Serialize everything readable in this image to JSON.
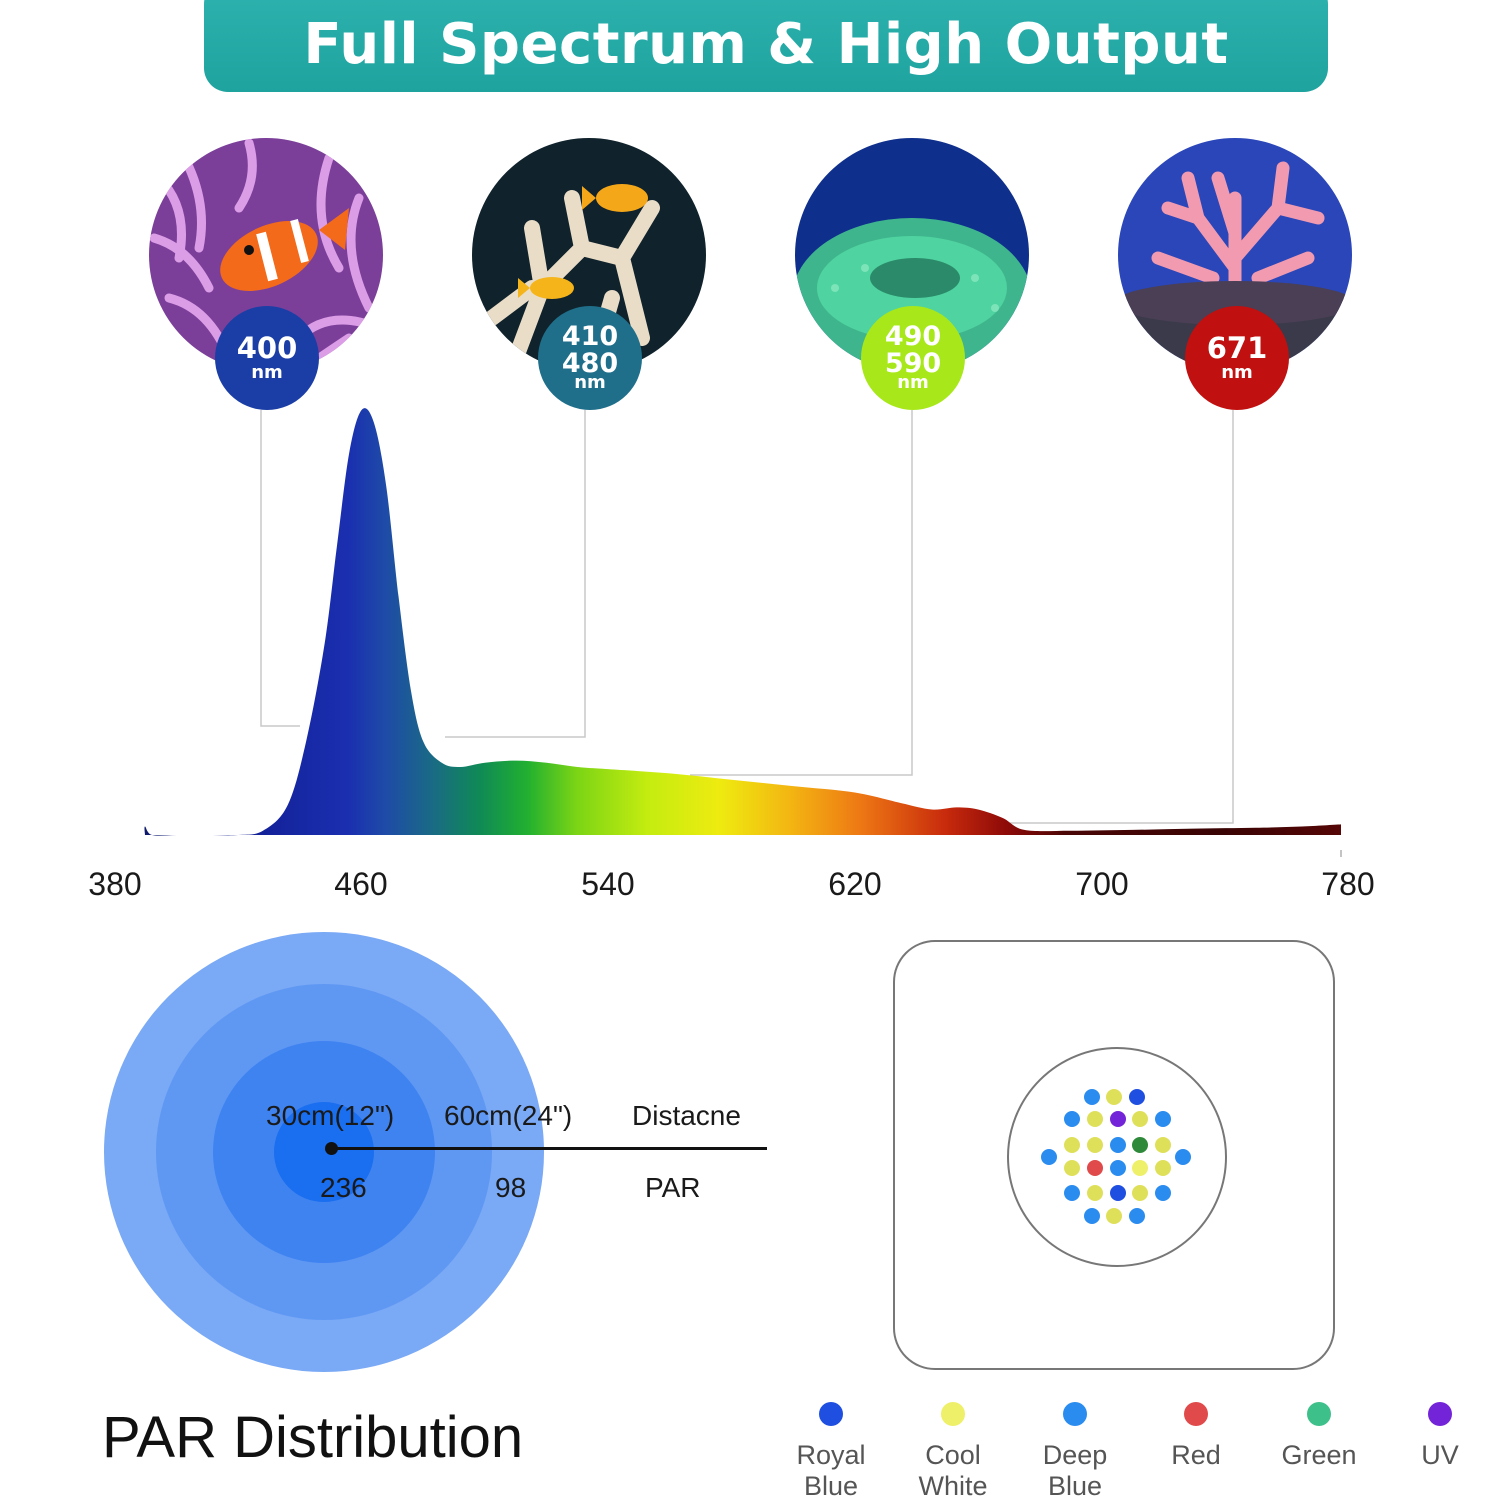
{
  "header": {
    "title": "Full Spectrum & High Output"
  },
  "photos": [
    {
      "name": "clownfish-anemone-photo",
      "badge_lines": [
        "400"
      ],
      "unit": "nm",
      "badge_color": "#1b3ea6"
    },
    {
      "name": "yellow-fish-coral-photo",
      "badge_lines": [
        "410",
        "480"
      ],
      "unit": "nm",
      "badge_color": "#1f6e8a"
    },
    {
      "name": "green-coral-photo",
      "badge_lines": [
        "490",
        "590"
      ],
      "unit": "nm",
      "badge_color": "#a8e81a"
    },
    {
      "name": "pink-coral-photo",
      "badge_lines": [
        "671"
      ],
      "unit": "nm",
      "badge_color": "#c0100f"
    }
  ],
  "chart_data": {
    "type": "area",
    "title": "",
    "xlabel": "",
    "ylabel": "",
    "xlim": [
      380,
      780
    ],
    "x_ticks": [
      "380",
      "460",
      "540",
      "620",
      "700",
      "780"
    ],
    "grid": false,
    "series": [
      {
        "x": [
          380,
          386,
          392,
          400,
          410,
          420,
          428,
          436,
          442,
          448,
          452,
          456,
          460,
          464,
          468,
          472,
          476,
          480,
          486,
          492,
          500,
          510,
          520,
          530,
          540,
          560,
          580,
          600,
          620,
          635,
          645,
          653,
          660,
          668,
          675,
          690,
          710,
          730,
          750,
          765,
          780
        ],
        "y": [
          0.0,
          0.02,
          0.0,
          0.0,
          0.0,
          0.0,
          0.01,
          0.07,
          0.22,
          0.45,
          0.68,
          0.9,
          1.0,
          0.97,
          0.82,
          0.56,
          0.34,
          0.22,
          0.17,
          0.16,
          0.17,
          0.175,
          0.17,
          0.16,
          0.155,
          0.145,
          0.13,
          0.115,
          0.1,
          0.075,
          0.06,
          0.065,
          0.06,
          0.04,
          0.012,
          0.01,
          0.012,
          0.015,
          0.017,
          0.02,
          0.025
        ]
      }
    ],
    "callout_wavelengths": [
      400,
      410,
      490,
      671
    ]
  },
  "par": {
    "title": "PAR Distribution",
    "distances": [
      "30cm(12\")",
      "60cm(24\")"
    ],
    "distance_label": "Distacne",
    "values": [
      "236",
      "98"
    ],
    "value_label": "PAR"
  },
  "leds": {
    "legend": [
      {
        "label": "Royal Blue",
        "color": "#1f4fe0"
      },
      {
        "label": "Cool White",
        "color": "#eef06a"
      },
      {
        "label": "Deep Blue",
        "color": "#2b8cf0"
      },
      {
        "label": "Red",
        "color": "#e04a4a"
      },
      {
        "label": "Green",
        "color": "#3ec08a"
      },
      {
        "label": "UV",
        "color": "#7324d8"
      }
    ]
  }
}
